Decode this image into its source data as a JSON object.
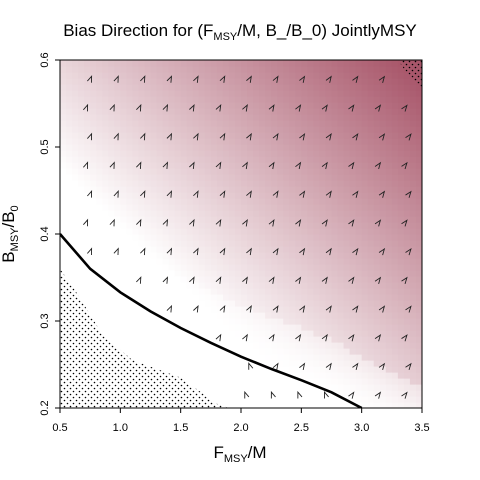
{
  "chart_data": {
    "type": "heatmap",
    "title": {
      "prefix": "Bias Direction for (F",
      "sub": "MSY",
      "suffix": "/M, B_/B_0) JointlyMSY"
    },
    "xlabel": {
      "main": "F",
      "sub": "MSY",
      "rest": "/M"
    },
    "ylabel": {
      "main": "B",
      "sub": "MSY",
      "sep": "/B",
      "sub2": "0"
    },
    "xlim": [
      0.5,
      3.5
    ],
    "ylim": [
      0.2,
      0.6
    ],
    "x_ticks": [
      "0.5",
      "1.0",
      "1.5",
      "2.0",
      "2.5",
      "3.0",
      "3.5"
    ],
    "y_ticks": [
      "0.2",
      "0.3",
      "0.4",
      "0.5",
      "0.6"
    ],
    "colors": {
      "low": "#ffffff",
      "high": "#a8566a",
      "curve": "#000000",
      "arrows": "#222222",
      "stipple": "#000000"
    },
    "boundary_curve": [
      [
        0.5,
        0.4
      ],
      [
        0.75,
        0.36
      ],
      [
        1.0,
        0.333
      ],
      [
        1.25,
        0.311
      ],
      [
        1.5,
        0.292
      ],
      [
        1.75,
        0.275
      ],
      [
        2.0,
        0.259
      ],
      [
        2.25,
        0.245
      ],
      [
        2.5,
        0.232
      ],
      [
        2.75,
        0.218
      ],
      [
        3.0,
        0.2
      ]
    ],
    "stipple_regions": [
      [
        [
          0.5,
          0.2
        ],
        [
          0.5,
          0.36
        ],
        [
          0.65,
          0.33
        ],
        [
          0.85,
          0.285
        ],
        [
          1.1,
          0.255
        ],
        [
          1.5,
          0.235
        ],
        [
          1.8,
          0.205
        ],
        [
          1.9,
          0.2
        ]
      ],
      [
        [
          3.3,
          0.6
        ],
        [
          3.5,
          0.6
        ],
        [
          3.5,
          0.565
        ],
        [
          3.42,
          0.58
        ],
        [
          3.35,
          0.59
        ]
      ]
    ],
    "grid": false
  }
}
